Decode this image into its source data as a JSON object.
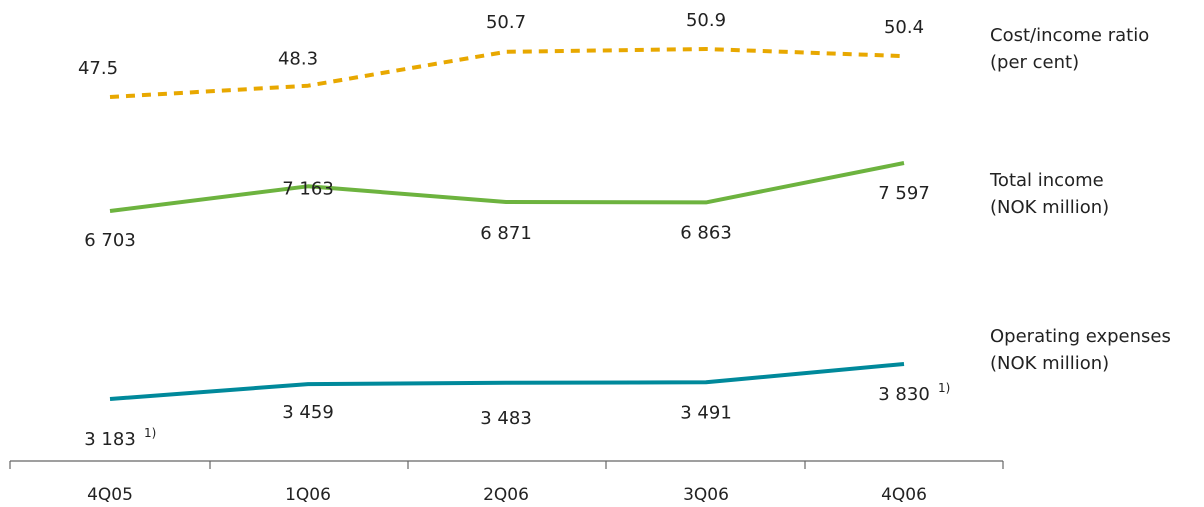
{
  "chart_data": {
    "type": "line",
    "categories": [
      "4Q05",
      "1Q06",
      "2Q06",
      "3Q06",
      "4Q06"
    ],
    "grid": false,
    "legend_placement": "right",
    "footnote_marker": "1)",
    "series": [
      {
        "key": "cost_income",
        "legend_lines": [
          "Cost/income ratio",
          "(per cent)"
        ],
        "values": [
          47.5,
          48.3,
          50.7,
          50.9,
          50.4
        ],
        "labels": [
          "47.5",
          "48.3",
          "50.7",
          "50.9",
          "50.4"
        ],
        "color": "#E8A800",
        "dashed": true,
        "footnote_indices": []
      },
      {
        "key": "total_income",
        "legend_lines": [
          "Total income",
          "(NOK million)"
        ],
        "values": [
          6703,
          7163,
          6871,
          6863,
          7597
        ],
        "labels": [
          "6 703",
          "7 163",
          "6 871",
          "6 863",
          "7 597"
        ],
        "color": "#6DB33F",
        "dashed": false,
        "footnote_indices": []
      },
      {
        "key": "operating_expenses",
        "legend_lines": [
          "Operating expenses",
          "(NOK million)"
        ],
        "values": [
          3183,
          3459,
          3483,
          3491,
          3830
        ],
        "labels": [
          "3 183",
          "3 459",
          "3 483",
          "3 491",
          "3 830"
        ],
        "color": "#00899B",
        "dashed": false,
        "footnote_indices": [
          0,
          4
        ]
      }
    ]
  }
}
